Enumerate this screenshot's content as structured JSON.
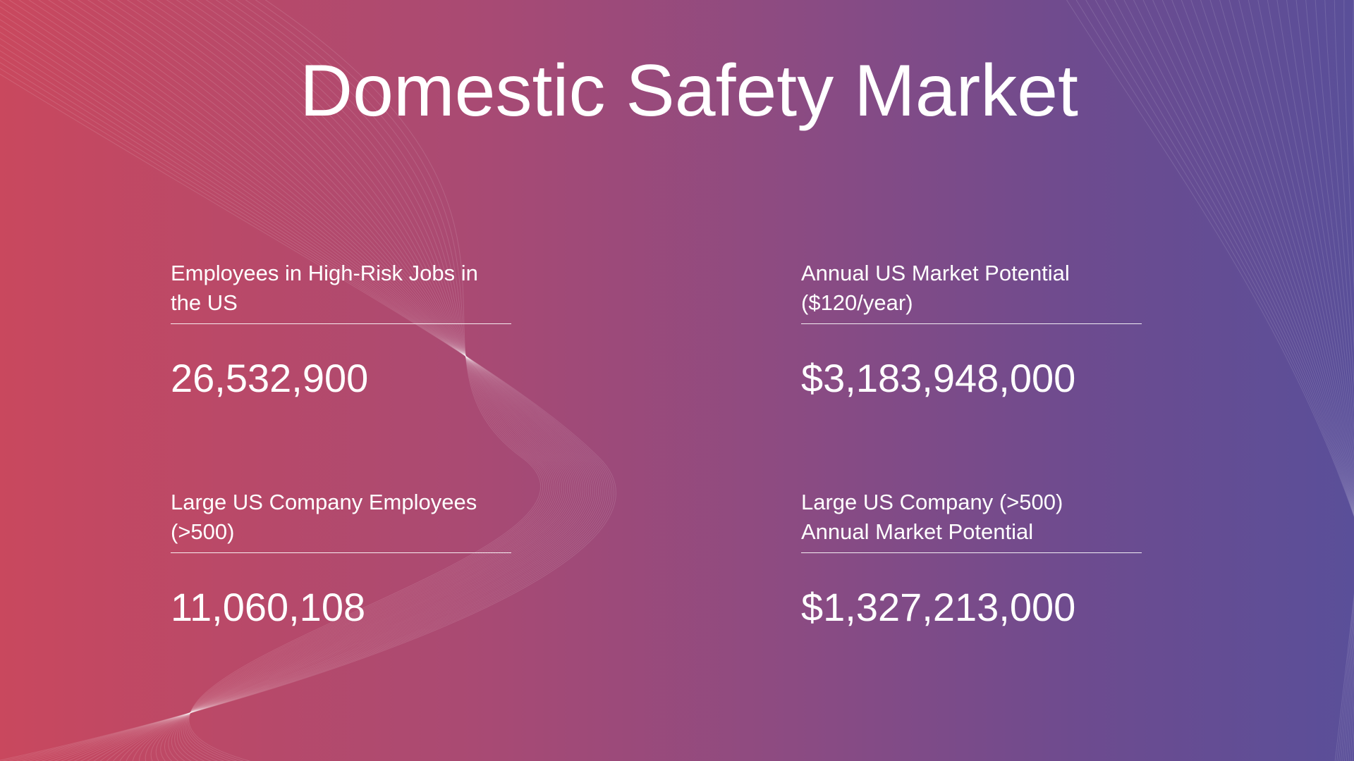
{
  "title": "Domestic Safety Market",
  "cards": [
    {
      "label_lines": [
        "Employees in High-Risk Jobs in",
        "the US"
      ],
      "value": "26,532,900"
    },
    {
      "label_lines": [
        "Annual US Market Potential ($120/year)"
      ],
      "value": "$3,183,948,000"
    },
    {
      "label_lines": [
        "Large US Company Employees",
        "(>500)"
      ],
      "value": "11,060,108"
    },
    {
      "label_lines": [
        "Large US Company (>500)",
        "Annual Market Potential"
      ],
      "value": "$1,327,213,000"
    }
  ]
}
